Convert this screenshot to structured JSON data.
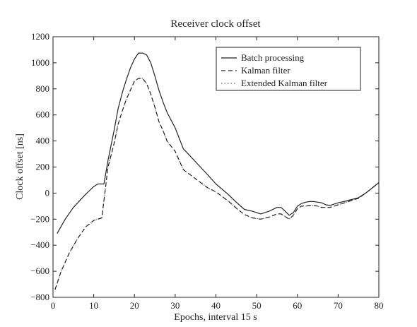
{
  "chart_data": {
    "type": "line",
    "title": "Receiver clock offset",
    "xlabel": "Epochs, interval 15 s",
    "ylabel": "Clock offset [ns]",
    "xlim": [
      0,
      80
    ],
    "ylim": [
      -800,
      1200
    ],
    "x_ticks": [
      0,
      10,
      20,
      30,
      40,
      50,
      60,
      70,
      80
    ],
    "y_ticks": [
      -800,
      -600,
      -400,
      -200,
      0,
      200,
      400,
      600,
      800,
      1000,
      1200
    ],
    "x_tick_labels": [
      "0",
      "10",
      "20",
      "30",
      "40",
      "50",
      "60",
      "70",
      "80"
    ],
    "y_tick_labels": [
      "−800",
      "−600",
      "−400",
      "−200",
      "0",
      "200",
      "400",
      "600",
      "800",
      "1000",
      "1200"
    ],
    "grid": false,
    "legend_position": "top-right",
    "series": [
      {
        "name": "Batch processing",
        "style": "solid",
        "color": "#222222",
        "x": [
          1,
          3,
          5,
          8,
          10,
          11,
          12.5,
          13.5,
          15,
          16,
          17,
          18,
          19,
          20,
          21,
          22,
          23,
          24,
          25,
          26,
          27,
          28,
          30,
          32,
          35,
          38,
          40,
          43,
          45,
          47,
          49,
          51,
          53,
          55,
          56,
          57,
          58,
          59,
          60,
          61,
          62,
          63,
          64,
          65,
          66,
          67,
          68,
          69,
          70,
          72,
          75,
          77,
          80
        ],
        "y": [
          -310,
          -200,
          -110,
          -10,
          50,
          70,
          70,
          250,
          480,
          650,
          770,
          870,
          960,
          1030,
          1075,
          1075,
          1060,
          1000,
          900,
          790,
          700,
          620,
          500,
          340,
          240,
          140,
          70,
          -10,
          -70,
          -125,
          -140,
          -160,
          -140,
          -110,
          -110,
          -140,
          -170,
          -150,
          -100,
          -80,
          -70,
          -65,
          -65,
          -70,
          -75,
          -90,
          -95,
          -85,
          -75,
          -60,
          -35,
          5,
          80
        ]
      },
      {
        "name": "Kalman filter",
        "style": "dashed",
        "color": "#222222",
        "x": [
          0.5,
          2,
          4,
          6,
          8,
          10,
          12,
          13.5,
          15,
          16,
          17,
          18,
          19,
          20,
          21,
          22,
          23,
          24,
          25,
          26,
          27,
          28,
          30,
          32,
          35,
          38,
          40,
          43,
          45,
          47,
          49,
          51,
          53,
          55,
          56,
          57,
          58,
          59,
          60,
          61,
          62,
          63,
          64,
          65,
          66,
          67,
          68,
          69,
          70,
          72,
          75,
          77,
          80
        ],
        "y": [
          -740,
          -600,
          -460,
          -350,
          -260,
          -210,
          -190,
          200,
          380,
          530,
          630,
          720,
          790,
          860,
          880,
          880,
          840,
          760,
          660,
          550,
          480,
          400,
          320,
          180,
          110,
          40,
          10,
          -60,
          -115,
          -165,
          -190,
          -200,
          -185,
          -160,
          -160,
          -180,
          -200,
          -170,
          -120,
          -100,
          -100,
          -95,
          -95,
          -100,
          -110,
          -110,
          -110,
          -100,
          -90,
          -70,
          -40,
          5,
          80
        ]
      },
      {
        "name": "Extended Kalman filter",
        "style": "dotted",
        "color": "#666666",
        "x": [
          0.5,
          2,
          4,
          6,
          8,
          10,
          12,
          13.5,
          15,
          16,
          17,
          18,
          19,
          20,
          21,
          22,
          23,
          24,
          25,
          26,
          27,
          28,
          30,
          32,
          35,
          38,
          40,
          43,
          45,
          47,
          49,
          51,
          53,
          55,
          56,
          57,
          58,
          59,
          60,
          61,
          62,
          63,
          64,
          65,
          66,
          67,
          68,
          69,
          70,
          72,
          75,
          77,
          80
        ],
        "y": [
          -740,
          -600,
          -460,
          -350,
          -260,
          -210,
          -190,
          200,
          380,
          530,
          630,
          720,
          790,
          860,
          880,
          880,
          840,
          760,
          660,
          550,
          480,
          400,
          320,
          180,
          110,
          40,
          10,
          -60,
          -115,
          -165,
          -190,
          -200,
          -185,
          -160,
          -160,
          -180,
          -200,
          -170,
          -120,
          -100,
          -100,
          -95,
          -95,
          -100,
          -110,
          -110,
          -110,
          -100,
          -90,
          -70,
          -40,
          5,
          80
        ]
      }
    ]
  }
}
